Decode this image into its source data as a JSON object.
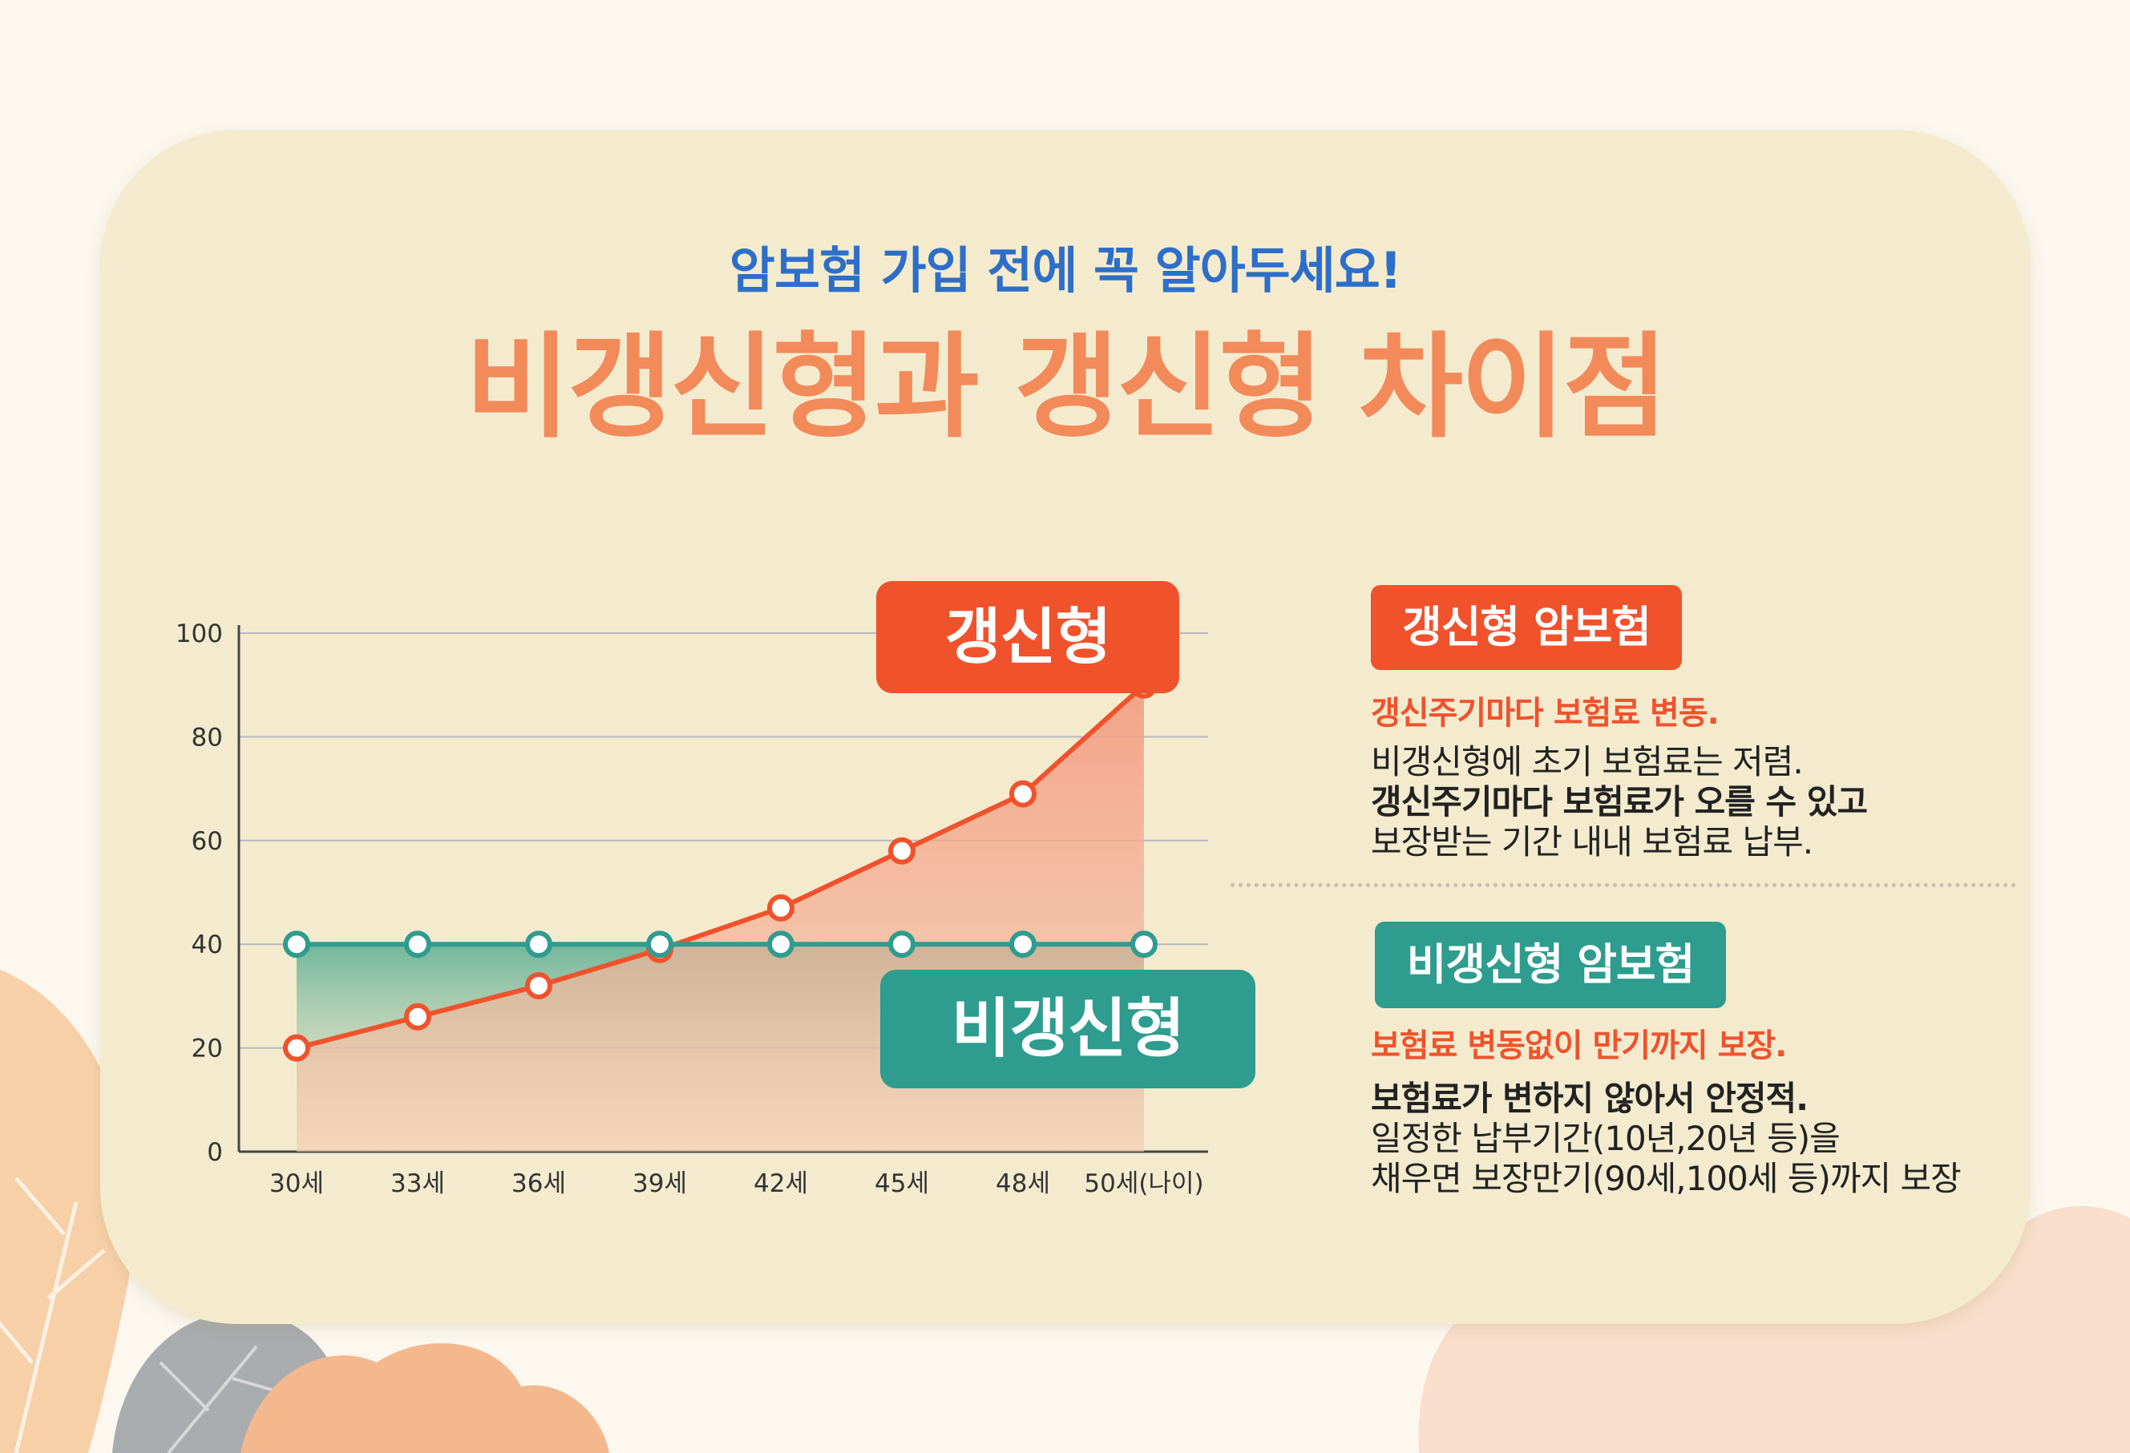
{
  "header": {
    "subtitle": "암보험 가입 전에 꼭 알아두세요!",
    "title": "비갱신형과 갱신형 차이점"
  },
  "badges": {
    "renewable": "갱신형",
    "non_renewable": "비갱신형"
  },
  "panel": {
    "renewable": {
      "tag": "갱신형 암보험",
      "accent": "갱신주기마다 보험료 변동.",
      "lines": [
        "비갱신형에 초기 보험료는 저렴.",
        "갱신주기마다 보험료가 오를 수 있고",
        "보장받는 기간 내내 보험료 납부."
      ]
    },
    "non_renewable": {
      "tag": "비갱신형 암보험",
      "accent": "보험료 변동없이 만기까지 보장.",
      "lines": [
        "보험료가 변하지 않아서 안정적.",
        "일정한 납부기간(10년,20년 등)을",
        "채우면 보장만기(90세,100세 등)까지 보장"
      ]
    }
  },
  "colors": {
    "renewable": "#f0522c",
    "non_renewable": "#2e9c8e",
    "title": "#f28a5a",
    "subtitle": "#2d6fc8"
  },
  "chart_data": {
    "type": "line",
    "categories": [
      "30세",
      "33세",
      "36세",
      "39세",
      "42세",
      "45세",
      "48세",
      "50세(나이)"
    ],
    "ylim": [
      0,
      100
    ],
    "yticks": [
      0,
      20,
      40,
      60,
      80,
      100
    ],
    "grid": true,
    "series": [
      {
        "name": "갱신형",
        "color": "#f0522c",
        "values": [
          20,
          26,
          32,
          39,
          47,
          58,
          69,
          90
        ]
      },
      {
        "name": "비갱신형",
        "color": "#2e9c8e",
        "values": [
          40,
          40,
          40,
          40,
          40,
          40,
          40,
          40
        ]
      }
    ]
  }
}
